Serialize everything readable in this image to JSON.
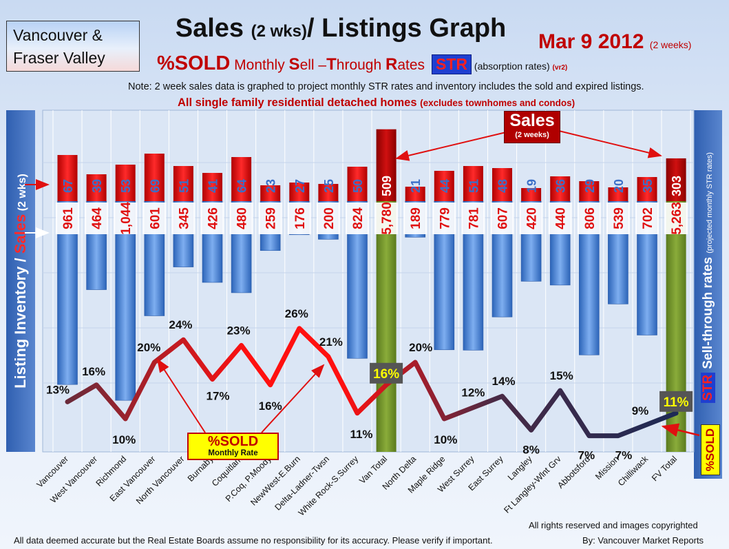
{
  "header": {
    "region_line1": "Vancouver &",
    "region_line2": "Fraser Valley",
    "title_main": "Sales ",
    "title_small": "(2 wks)",
    "title_rest": "/ Listings Graph",
    "date_main": "Mar 9 2012 ",
    "date_small": "(2 weeks)",
    "subtitle_sold": "%SOLD",
    "subtitle_monthly": " Monthly ",
    "sub_s": "S",
    "sub_ell": "ell –",
    "sub_t": "T",
    "sub_hrough": "hrough ",
    "sub_r": "R",
    "sub_ates": "ates",
    "str_badge": "STR",
    "str_note": " (absorption rates) ",
    "str_note_ver": "(vr2)",
    "note": "Note: 2 week sales data is graphed to project monthly STR rates and inventory includes the sold and expired listings.",
    "scope_main": "All single family residential detached homes ",
    "scope_small": "(excludes townhomes and condos)"
  },
  "axes": {
    "left_title_a": "Listing Inventory / ",
    "left_title_b": "Sales",
    "left_title_c": " (2 wks)",
    "right_title_str": "STR",
    "right_title_main": " Sell-through rates ",
    "right_title_small": "(projected monthly STR rates)"
  },
  "legend": {
    "sold_label": "%SOLD",
    "sold_sub": "Monthly Rate",
    "side_badge": "%SOLD",
    "sales_callout": "Sales",
    "sales_callout_sub": "(2 weeks)"
  },
  "footer": {
    "rights": "All rights reserved and  images copyrighted",
    "disclaimer": "All data deemed accurate but the Real Estate Boards assume no responsibility for its accuracy.  Please verify if important.",
    "credit": "By: Vancouver Market Reports"
  },
  "colors": {
    "sales_bar": "#e01010",
    "listing_bar": "#4a86d4",
    "total_bar": "#6f8f2a",
    "total_sales_bar": "#b00000",
    "line_start": "#6a2a3a",
    "line_peak": "#ff1010",
    "line_end": "#1d2a55"
  },
  "chart_data": {
    "type": "bar",
    "categories": [
      "Vancouver",
      "West Vancouver",
      "Richmond",
      "East Vancouver",
      "North Vancouver",
      "Burnaby",
      "Coquitlam",
      "P.Coq, P.Moody",
      "NewWest-E.Burn",
      "Delta-Ladner-Twsn",
      "White Rock-S.Surrey",
      "Van Total",
      "North Delta",
      "Maple Ridge",
      "West Surrey",
      "East Surrey",
      "Langley",
      "Ft Langley-Wlnt Grv",
      "Abbotsford",
      "Mission",
      "Chilliwack",
      "FV Total"
    ],
    "series": [
      {
        "name": "Sales",
        "values": [
          67,
          39,
          53,
          69,
          51,
          41,
          64,
          23,
          27,
          25,
          50,
          509,
          21,
          44,
          51,
          48,
          19,
          36,
          29,
          20,
          35,
          303
        ]
      },
      {
        "name": "Listing Inventory",
        "values": [
          961,
          464,
          1044,
          601,
          345,
          426,
          480,
          259,
          176,
          200,
          824,
          5780,
          189,
          779,
          781,
          607,
          420,
          440,
          806,
          539,
          702,
          5263
        ]
      },
      {
        "name": "%SOLD Monthly Rate",
        "values": [
          13,
          16,
          10,
          20,
          24,
          17,
          23,
          16,
          26,
          21,
          11,
          16,
          20,
          10,
          12,
          14,
          8,
          15,
          7,
          7,
          9,
          11
        ]
      }
    ],
    "sales_labels": [
      "67",
      "39",
      "53",
      "69",
      "51",
      "41",
      "64",
      "23",
      "27",
      "25",
      "50",
      "509",
      "21",
      "44",
      "51",
      "48",
      "19",
      "36",
      "29",
      "20",
      "35",
      "303"
    ],
    "listing_labels": [
      "961",
      "464",
      "1,044",
      "601",
      "345",
      "426",
      "480",
      "259",
      "176",
      "200",
      "824",
      "5,780",
      "189",
      "779",
      "781",
      "607",
      "420",
      "440",
      "806",
      "539",
      "702",
      "5,263"
    ],
    "str_labels": [
      "13%",
      "16%",
      "10%",
      "20%",
      "24%",
      "17%",
      "23%",
      "16%",
      "26%",
      "21%",
      "11%",
      "16%",
      "20%",
      "10%",
      "12%",
      "14%",
      "8%",
      "15%",
      "7%",
      "7%",
      "9%",
      "11%"
    ],
    "totals": [
      "Van Total",
      "FV Total"
    ],
    "grid": true
  }
}
